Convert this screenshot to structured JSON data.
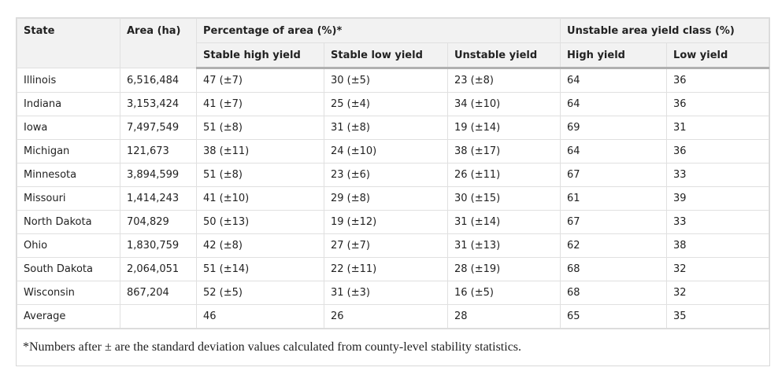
{
  "header": {
    "state": "State",
    "area": "Area (ha)",
    "percentage": "Percentage of area (%)*",
    "yield_class": "Unstable area yield class (%)",
    "subcolumns": [
      "Stable high yield",
      "Stable low yield",
      "Unstable yield",
      "High yield",
      "Low yield"
    ]
  },
  "table": {
    "rows": [
      [
        "Illinois",
        "6,516,484",
        "47 (±7)",
        "30 (±5)",
        "23 (±8)",
        "64",
        "36"
      ],
      [
        "Indiana",
        "3,153,424",
        "41 (±7)",
        "25 (±4)",
        "34 (±10)",
        "64",
        "36"
      ],
      [
        "Iowa",
        "7,497,549",
        "51 (±8)",
        "31 (±8)",
        "19 (±14)",
        "69",
        "31"
      ],
      [
        "Michigan",
        "121,673",
        "38 (±11)",
        "24 (±10)",
        "38 (±17)",
        "64",
        "36"
      ],
      [
        "Minnesota",
        "3,894,599",
        "51 (±8)",
        "23 (±6)",
        "26 (±11)",
        "67",
        "33"
      ],
      [
        "Missouri",
        "1,414,243",
        "41 (±10)",
        "29 (±8)",
        "30 (±15)",
        "61",
        "39"
      ],
      [
        "North Dakota",
        "704,829",
        "50 (±13)",
        "19 (±12)",
        "31 (±14)",
        "67",
        "33"
      ],
      [
        "Ohio",
        "1,830,759",
        "42 (±8)",
        "27 (±7)",
        "31 (±13)",
        "62",
        "38"
      ],
      [
        "South Dakota",
        "2,064,051",
        "51 (±14)",
        "22 (±11)",
        "28 (±19)",
        "68",
        "32"
      ],
      [
        "Wisconsin",
        "867,204",
        "52 (±5)",
        "31 (±3)",
        "16 (±5)",
        "68",
        "32"
      ]
    ],
    "average": {
      "label": "Average",
      "values": [
        "46",
        "26",
        "28",
        "65",
        "35"
      ]
    }
  },
  "footnote": "*Numbers after ± are the standard deviation values calculated from county-level stability statistics."
}
